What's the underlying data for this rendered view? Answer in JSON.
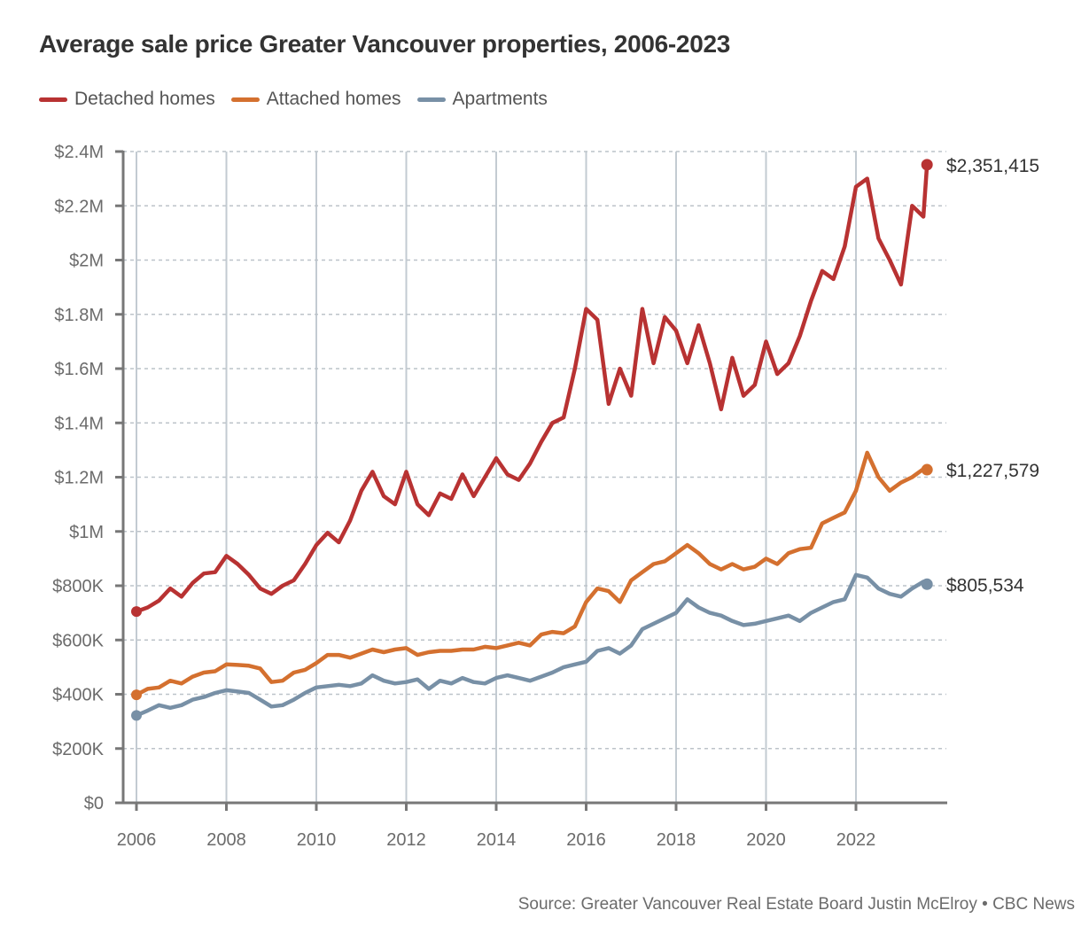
{
  "chart_data": {
    "type": "line",
    "title": "Average sale price Greater Vancouver properties, 2006-2023",
    "xlabel": "",
    "ylabel": "",
    "xlim": [
      2006,
      2023.58
    ],
    "ylim": [
      0,
      2400000
    ],
    "grid": true,
    "legend_position": "top-left",
    "x_ticks": [
      2006,
      2008,
      2010,
      2012,
      2014,
      2016,
      2018,
      2020,
      2022
    ],
    "x_tick_labels": [
      "2006",
      "2008",
      "2010",
      "2012",
      "2014",
      "2016",
      "2018",
      "2020",
      "2022"
    ],
    "y_ticks": [
      0,
      200000,
      400000,
      600000,
      800000,
      1000000,
      1200000,
      1400000,
      1600000,
      1800000,
      2000000,
      2200000,
      2400000
    ],
    "y_tick_labels": [
      "$0",
      "$200K",
      "$400K",
      "$600K",
      "$800K",
      "$1M",
      "$1.2M",
      "$1.4M",
      "$1.6M",
      "$1.8M",
      "$2M",
      "$2.2M",
      "$2.4M"
    ],
    "x": [
      2006.0,
      2006.25,
      2006.5,
      2006.75,
      2007.0,
      2007.25,
      2007.5,
      2007.75,
      2008.0,
      2008.25,
      2008.5,
      2008.75,
      2009.0,
      2009.25,
      2009.5,
      2009.75,
      2010.0,
      2010.25,
      2010.5,
      2010.75,
      2011.0,
      2011.25,
      2011.5,
      2011.75,
      2012.0,
      2012.25,
      2012.5,
      2012.75,
      2013.0,
      2013.25,
      2013.5,
      2013.75,
      2014.0,
      2014.25,
      2014.5,
      2014.75,
      2015.0,
      2015.25,
      2015.5,
      2015.75,
      2016.0,
      2016.25,
      2016.5,
      2016.75,
      2017.0,
      2017.25,
      2017.5,
      2017.75,
      2018.0,
      2018.25,
      2018.5,
      2018.75,
      2019.0,
      2019.25,
      2019.5,
      2019.75,
      2020.0,
      2020.25,
      2020.5,
      2020.75,
      2021.0,
      2021.25,
      2021.5,
      2021.75,
      2022.0,
      2022.25,
      2022.5,
      2022.75,
      2023.0,
      2023.25,
      2023.5,
      2023.58
    ],
    "series": [
      {
        "name": "Detached homes",
        "color": "#b83232",
        "values": [
          705000,
          720000,
          745000,
          790000,
          760000,
          810000,
          845000,
          850000,
          910000,
          880000,
          840000,
          790000,
          770000,
          800000,
          820000,
          880000,
          950000,
          995000,
          960000,
          1040000,
          1150000,
          1220000,
          1130000,
          1100000,
          1220000,
          1100000,
          1060000,
          1140000,
          1120000,
          1210000,
          1130000,
          1200000,
          1270000,
          1210000,
          1190000,
          1250000,
          1330000,
          1400000,
          1420000,
          1600000,
          1820000,
          1780000,
          1470000,
          1600000,
          1500000,
          1820000,
          1620000,
          1790000,
          1740000,
          1620000,
          1760000,
          1620000,
          1450000,
          1640000,
          1500000,
          1540000,
          1700000,
          1580000,
          1620000,
          1720000,
          1850000,
          1960000,
          1930000,
          2050000,
          2270000,
          2300000,
          2080000,
          2000000,
          1910000,
          2200000,
          2160000,
          2351415
        ],
        "end_label": "$2,351,415"
      },
      {
        "name": "Attached homes",
        "color": "#d4702f",
        "values": [
          398000,
          420000,
          425000,
          450000,
          440000,
          465000,
          480000,
          485000,
          510000,
          508000,
          505000,
          495000,
          445000,
          450000,
          480000,
          490000,
          515000,
          545000,
          545000,
          535000,
          550000,
          565000,
          555000,
          565000,
          570000,
          545000,
          555000,
          560000,
          560000,
          565000,
          565000,
          575000,
          570000,
          580000,
          590000,
          580000,
          620000,
          630000,
          625000,
          650000,
          740000,
          790000,
          780000,
          740000,
          820000,
          850000,
          880000,
          890000,
          920000,
          950000,
          920000,
          880000,
          860000,
          880000,
          860000,
          870000,
          900000,
          880000,
          920000,
          935000,
          940000,
          1030000,
          1050000,
          1070000,
          1150000,
          1290000,
          1200000,
          1150000,
          1180000,
          1200000,
          1230000,
          1227579
        ],
        "end_label": "$1,227,579"
      },
      {
        "name": "Apartments",
        "color": "#7890a6",
        "values": [
          322000,
          340000,
          360000,
          350000,
          360000,
          380000,
          390000,
          405000,
          415000,
          410000,
          405000,
          380000,
          355000,
          360000,
          380000,
          405000,
          425000,
          430000,
          435000,
          430000,
          440000,
          470000,
          450000,
          440000,
          445000,
          455000,
          420000,
          450000,
          440000,
          460000,
          445000,
          440000,
          460000,
          470000,
          460000,
          450000,
          465000,
          480000,
          500000,
          510000,
          520000,
          560000,
          570000,
          550000,
          580000,
          640000,
          660000,
          680000,
          700000,
          750000,
          720000,
          700000,
          690000,
          670000,
          655000,
          660000,
          670000,
          680000,
          690000,
          670000,
          700000,
          720000,
          740000,
          750000,
          840000,
          830000,
          790000,
          770000,
          760000,
          790000,
          815000,
          805534
        ],
        "end_label": "$805,534"
      }
    ]
  },
  "source": "Source: Greater Vancouver Real Estate Board Justin McElroy • CBC News"
}
